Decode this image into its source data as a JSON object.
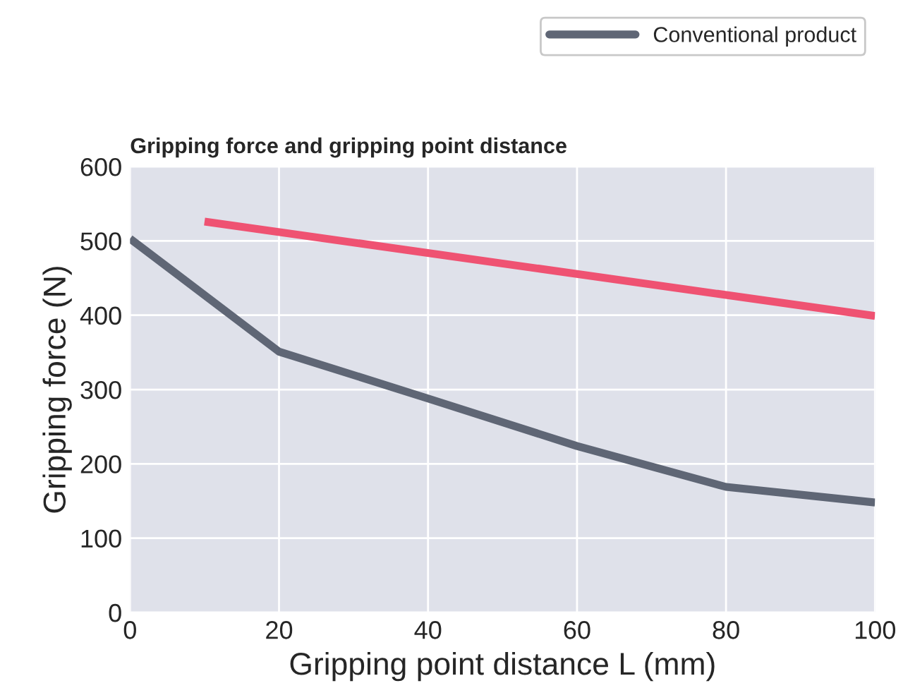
{
  "chart_data": {
    "type": "line",
    "title": "Gripping force and gripping point distance",
    "xlabel": "Gripping point distance L (mm)",
    "ylabel": "Gripping force (N)",
    "series": [
      {
        "color": "#ef5272",
        "x": [
          10,
          100
        ],
        "values": [
          526,
          399
        ]
      },
      {
        "name": "Conventional product",
        "color": "#5f6675",
        "x": [
          0,
          20,
          40,
          60,
          80,
          100
        ],
        "values": [
          503,
          351,
          288,
          224,
          169,
          148
        ]
      }
    ],
    "xlim": [
      0,
      100
    ],
    "xticks": [
      0,
      20,
      40,
      60,
      80,
      100
    ],
    "ylim": [
      0,
      600
    ],
    "yticks": [
      0,
      100,
      200,
      300,
      400,
      500,
      600
    ],
    "grid": true,
    "legend": "top right",
    "marker": "none",
    "line_style": "solid"
  }
}
